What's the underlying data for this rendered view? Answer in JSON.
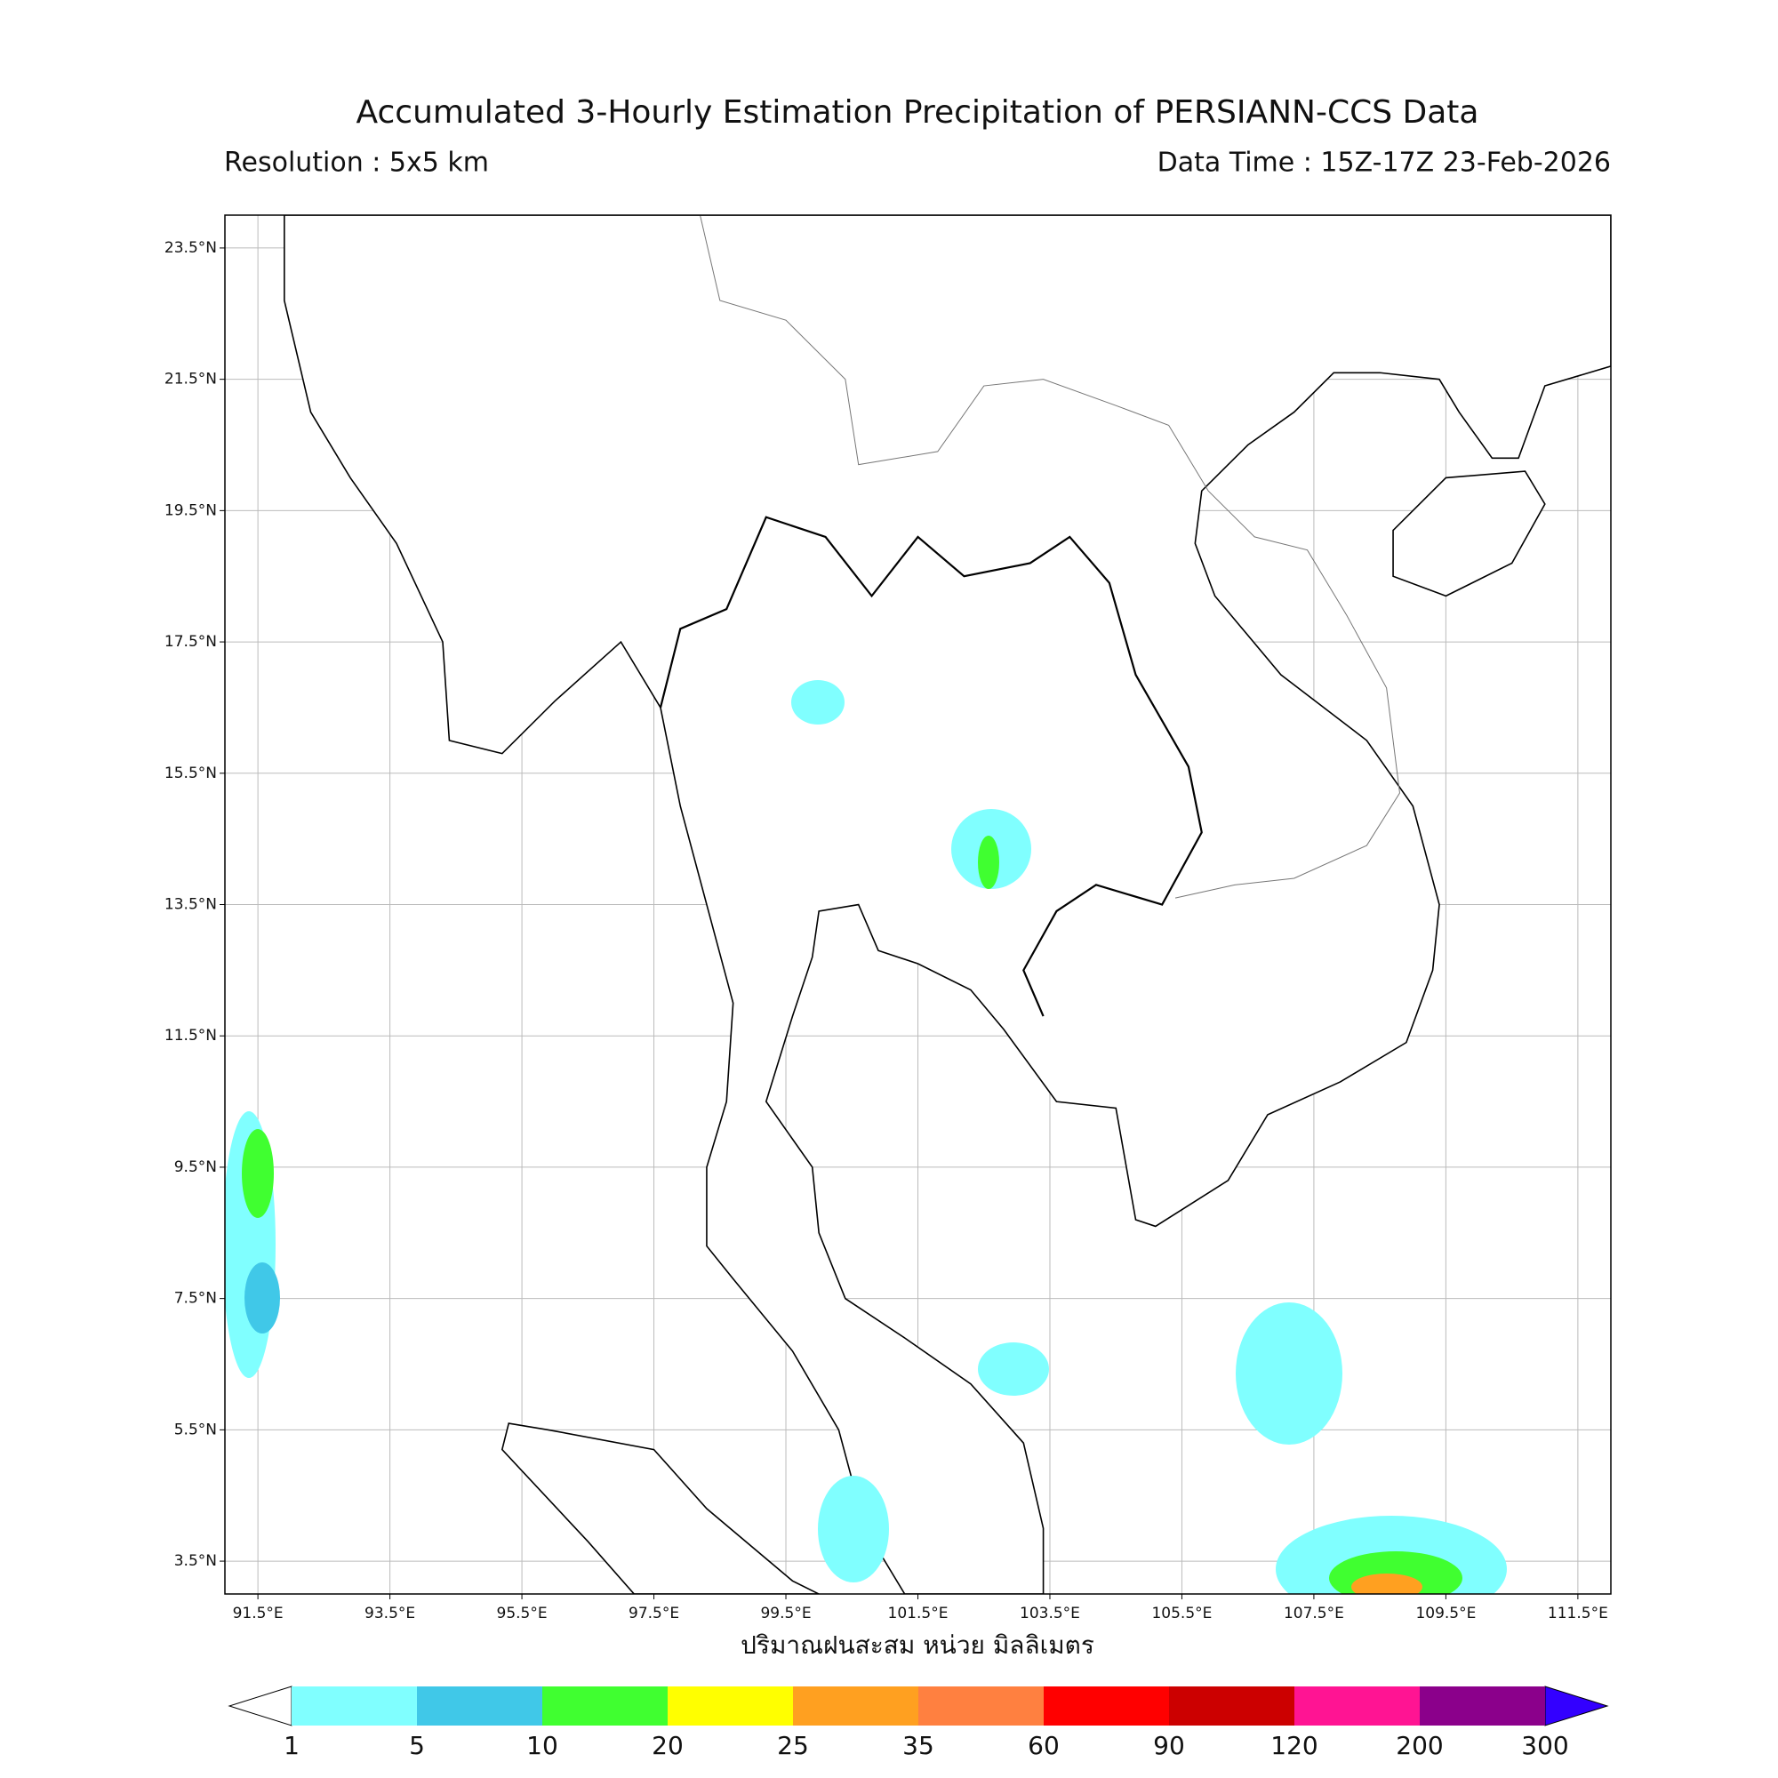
{
  "header": {
    "title": "Accumulated 3-Hourly Estimation Precipitation of PERSIANN-CCS Data",
    "resolution": "Resolution : 5x5 km",
    "data_time": "Data Time : 15Z-17Z 23-Feb-2026"
  },
  "map": {
    "lon_range": [
      91,
      112
    ],
    "lat_range": [
      3,
      24
    ],
    "lon_ticks": [
      {
        "value": 91.5,
        "label": "91.5°E"
      },
      {
        "value": 93.5,
        "label": "93.5°E"
      },
      {
        "value": 95.5,
        "label": "95.5°E"
      },
      {
        "value": 97.5,
        "label": "97.5°E"
      },
      {
        "value": 99.5,
        "label": "99.5°E"
      },
      {
        "value": 101.5,
        "label": "101.5°E"
      },
      {
        "value": 103.5,
        "label": "103.5°E"
      },
      {
        "value": 105.5,
        "label": "105.5°E"
      },
      {
        "value": 107.5,
        "label": "107.5°E"
      },
      {
        "value": 109.5,
        "label": "109.5°E"
      },
      {
        "value": 111.5,
        "label": "111.5°E"
      }
    ],
    "lat_ticks": [
      {
        "value": 23.5,
        "label": "23.5°N"
      },
      {
        "value": 21.5,
        "label": "21.5°N"
      },
      {
        "value": 19.5,
        "label": "19.5°N"
      },
      {
        "value": 17.5,
        "label": "17.5°N"
      },
      {
        "value": 15.5,
        "label": "15.5°N"
      },
      {
        "value": 13.5,
        "label": "13.5°N"
      },
      {
        "value": 11.5,
        "label": "11.5°N"
      },
      {
        "value": 9.5,
        "label": "9.5°N"
      },
      {
        "value": 7.5,
        "label": "7.5°N"
      },
      {
        "value": 5.5,
        "label": "5.5°N"
      },
      {
        "value": 3.5,
        "label": "3.5°N"
      }
    ],
    "grid": true
  },
  "colorbar": {
    "label": "ปริมาณฝนสะสม หน่วย มิลลิเมตร",
    "levels": [
      1,
      5,
      10,
      20,
      25,
      35,
      60,
      90,
      120,
      200,
      300
    ],
    "colors": [
      "#80ffff",
      "#40c8e8",
      "#40ff30",
      "#ffff00",
      "#ffa020",
      "#ff8040",
      "#ff0000",
      "#cc0000",
      "#ff1493",
      "#8b008b"
    ],
    "under_color": "#ffffff",
    "over_color": "#3300ff"
  }
}
